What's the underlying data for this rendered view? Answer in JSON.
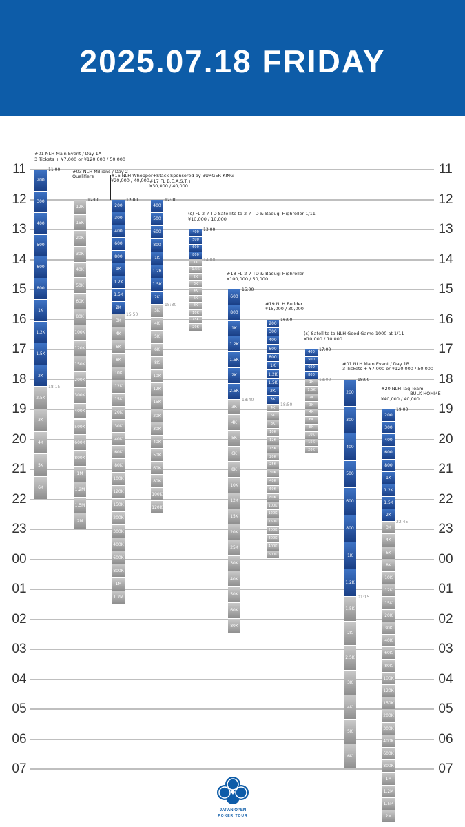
{
  "header": {
    "title": "2025.07.18 FRIDAY",
    "bg": "#0d5ca8"
  },
  "hours": [
    "11",
    "12",
    "13",
    "14",
    "15",
    "16",
    "17",
    "18",
    "19",
    "20",
    "21",
    "22",
    "23",
    "00",
    "01",
    "02",
    "03",
    "04",
    "05",
    "06",
    "07"
  ],
  "colors": {
    "blue_top": "#3e73c4",
    "blue_bottom": "#1a3f86",
    "gray_top": "#c9c9c9",
    "gray_bottom": "#8e8e8e",
    "line": "#bfbfbf"
  },
  "events": [
    {
      "title_lines": [
        "#01 NLH Main Event / Day 1A",
        "3 Tickets + ¥7,000 or ¥120,000 / 50,000"
      ],
      "start": 11.0,
      "start_label": "11:00",
      "late_reg": 18.25,
      "late_label": "18:15",
      "levels": [
        "200",
        "300",
        "400",
        "500",
        "600",
        "800",
        "1K",
        "1.2K",
        "1.5K",
        "2K",
        "2.5K",
        "3K",
        "4K",
        "5K",
        "6K"
      ]
    },
    {
      "title_lines": [
        "#03 NLH Millions / Day 2",
        "Qualifiers"
      ],
      "start": 12.0,
      "start_label": "12:00",
      "late_reg": null,
      "late_label": "",
      "levels": [
        "12K",
        "15K",
        "20K",
        "30K",
        "40K",
        "50K",
        "60K",
        "80K",
        "100K",
        "120K",
        "150K",
        "200K",
        "300K",
        "400K",
        "500K",
        "600K",
        "800K",
        "1M",
        "1.2M",
        "1.5M",
        "2M"
      ]
    },
    {
      "title_lines": [
        "#16 NLH Whopper+Stack Sponsored by BURGER KING",
        "¥20,000 / 40,000"
      ],
      "start": 12.0,
      "start_label": "12:00",
      "late_reg": 15.83,
      "late_label": "15:50",
      "levels": [
        "200",
        "300",
        "400",
        "600",
        "800",
        "1K",
        "1.2K",
        "1.5K",
        "2K",
        "3K",
        "4K",
        "6K",
        "8K",
        "10K",
        "12K",
        "15K",
        "20K",
        "30K",
        "40K",
        "60K",
        "80K",
        "100K",
        "120K",
        "150K",
        "200K",
        "300K",
        "400K",
        "600K",
        "800K",
        "1M",
        "1.2M"
      ]
    },
    {
      "title_lines": [
        "#17 FL B.E.A.S.T.+",
        "¥30,000 / 40,000"
      ],
      "start": 12.0,
      "start_label": "12:00",
      "late_reg": 15.5,
      "late_label": "15:30",
      "levels": [
        "400",
        "500",
        "600",
        "800",
        "1K",
        "1.2K",
        "1.5K",
        "2K",
        "3K",
        "4K",
        "5K",
        "6K",
        "8K",
        "10K",
        "12K",
        "15K",
        "20K",
        "30K",
        "40K",
        "50K",
        "60K",
        "80K",
        "100K",
        "120K"
      ]
    },
    {
      "title_lines": [
        "(s) FL 2-7 TD Satellite to 2-7 TD & Badugi Highroller 1/11",
        "¥10,000 / 10,000"
      ],
      "start": 13.0,
      "start_label": "13:00",
      "late_reg": 14.0,
      "late_label": "14:00",
      "levels": [
        "400",
        "500",
        "600",
        "800",
        "1K",
        "1.5K",
        "2K",
        "3K",
        "4K",
        "6K",
        "8K",
        "10K",
        "15K",
        "20K"
      ]
    },
    {
      "title_lines": [
        "#18 FL 2-7 TD & Badugi Highroller",
        "¥100,000 / 50,000"
      ],
      "start": 15.0,
      "start_label": "15:00",
      "late_reg": 18.67,
      "late_label": "18:40",
      "levels": [
        "600",
        "800",
        "1K",
        "1.2K",
        "1.5K",
        "2K",
        "2.5K",
        "3K",
        "4K",
        "5K",
        "6K",
        "8K",
        "10K",
        "12K",
        "15K",
        "20K",
        "25K",
        "30K",
        "40K",
        "50K",
        "60K",
        "80K"
      ]
    },
    {
      "title_lines": [
        "#19 NLH Builder",
        "¥15,000 / 30,000"
      ],
      "start": 16.0,
      "start_label": "16:00",
      "late_reg": 18.83,
      "late_label": "18:50",
      "levels": [
        "200",
        "300",
        "400",
        "600",
        "800",
        "1K",
        "1.2K",
        "1.5K",
        "2K",
        "3K",
        "4K",
        "6K",
        "8K",
        "10K",
        "12K",
        "15K",
        "20K",
        "25K",
        "30K",
        "40K",
        "60K",
        "80K",
        "100K",
        "120K",
        "150K",
        "200K",
        "300K",
        "400K",
        "600K"
      ]
    },
    {
      "title_lines": [
        "(s) Satellite to NLH Good Game 1000 at 1/11",
        "¥10,000 / 10,000"
      ],
      "start": 17.0,
      "start_label": "17:00",
      "late_reg": 18.0,
      "late_label": "18:00",
      "levels": [
        "400",
        "500",
        "600",
        "800",
        "1K",
        "1.5K",
        "2K",
        "3K",
        "4K",
        "6K",
        "8K",
        "10K",
        "15K",
        "20K"
      ]
    },
    {
      "title_lines": [
        "#01 NLH Main Event / Day 1B",
        "3 Tickets + ¥7,000 or ¥120,000 / 50,000"
      ],
      "start": 18.0,
      "start_label": "18:00",
      "late_reg": 25.25,
      "late_label": "01:15",
      "levels": [
        "200",
        "300",
        "400",
        "500",
        "600",
        "800",
        "1K",
        "1.2K",
        "1.5K",
        "2K",
        "2.5K",
        "3K",
        "4K",
        "5K",
        "6K"
      ]
    },
    {
      "title_lines": [
        "#20 NLH Tag Team",
        "-BULK HOMME-",
        "¥40,000 / 40,000"
      ],
      "start": 19.0,
      "start_label": "19:00",
      "late_reg": 22.75,
      "late_label": "22:45",
      "levels": [
        "200",
        "300",
        "400",
        "600",
        "800",
        "1K",
        "1.2K",
        "1.5K",
        "2K",
        "3K",
        "4K",
        "6K",
        "8K",
        "10K",
        "12K",
        "15K",
        "20K",
        "30K",
        "40K",
        "60K",
        "80K",
        "100K",
        "120K",
        "150K",
        "200K",
        "300K",
        "400K",
        "600K",
        "800K",
        "1M",
        "1.2M",
        "1.5M",
        "2M"
      ]
    }
  ],
  "logo": {
    "line1": "JAPAN OPEN",
    "line2": "POKER TOUR",
    "color": "#0d5ca8"
  }
}
